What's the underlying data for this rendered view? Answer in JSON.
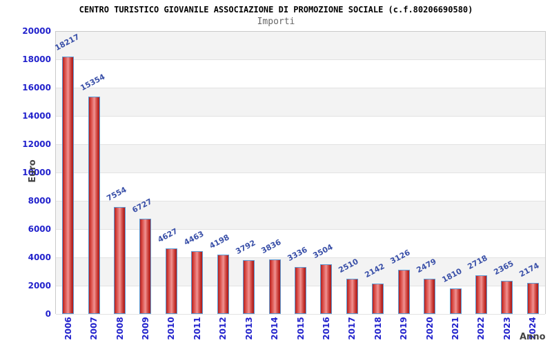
{
  "header": {
    "title": "CENTRO TURISTICO GIOVANILE ASSOCIAZIONE DI PROMOZIONE SOCIALE (c.f.80206690580)",
    "subtitle": "Importi"
  },
  "chart_data": {
    "type": "bar",
    "title": "CENTRO TURISTICO GIOVANILE ASSOCIAZIONE DI PROMOZIONE SOCIALE (c.f.80206690580)",
    "subtitle": "Importi",
    "xlabel": "Anno",
    "ylabel": "Euro",
    "categories": [
      "2006",
      "2007",
      "2008",
      "2009",
      "2010",
      "2011",
      "2012",
      "2013",
      "2014",
      "2015",
      "2016",
      "2017",
      "2018",
      "2019",
      "2020",
      "2021",
      "2022",
      "2023",
      "2024"
    ],
    "values": [
      18217,
      15354,
      7554,
      6727,
      4627,
      4463,
      4198,
      3792,
      3836,
      3336,
      3504,
      2510,
      2142,
      3126,
      2479,
      1810,
      2718,
      2365,
      2174
    ],
    "ylim": [
      0,
      20000
    ],
    "ytick_step": 2000,
    "legend": null,
    "grid": "horizontal-bands",
    "colors": {
      "bar_fill_dark": "#b3201f",
      "bar_fill_light": "#f09393",
      "bar_border": "#5b9bd5",
      "axis_tick_label": "#2222cc",
      "value_label": "#3a50a8",
      "band_fill": "#f3f3f3",
      "gridline": "#e2e2e2",
      "axis_title_text": "#444444",
      "title_text": "#000000",
      "subtitle_text": "#666666"
    }
  }
}
